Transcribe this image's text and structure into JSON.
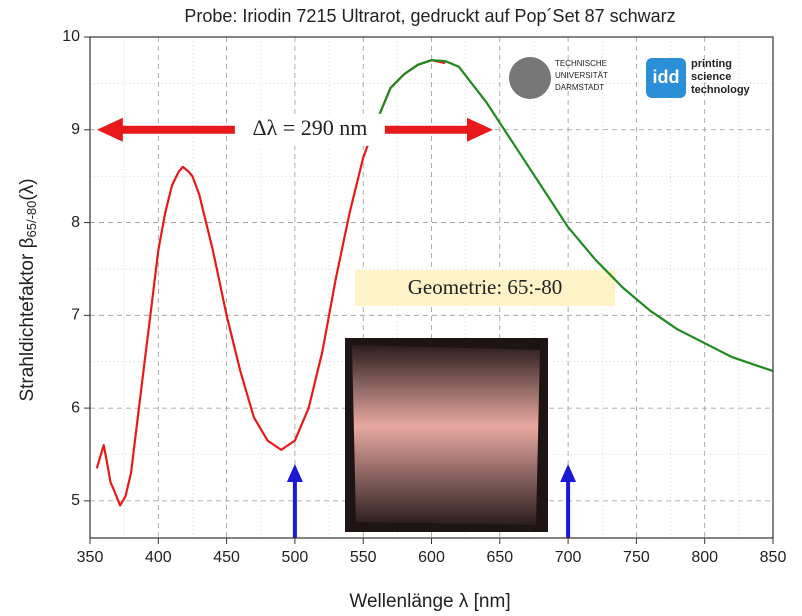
{
  "chart_data": {
    "type": "line",
    "title": "Probe: Iriodin 7215 Ultrarot, gedruckt auf Pop´Set 87 schwarz",
    "x_label": "Wellenlänge λ [nm]",
    "y_label": {
      "text": "Strahldichtefaktor β",
      "subscript": "65/-80",
      "suffix": "(λ)"
    },
    "xlim": [
      350,
      850
    ],
    "xticks": [
      350,
      400,
      450,
      500,
      550,
      600,
      650,
      700,
      750,
      800,
      850
    ],
    "ylim": [
      4.6,
      10
    ],
    "yticks": [
      5,
      6,
      7,
      8,
      9,
      10
    ],
    "grid": true,
    "series": [
      {
        "color": "#e8191a",
        "x": [
          355,
          358,
          360,
          362,
          365,
          368,
          372,
          376,
          380,
          385,
          390,
          395,
          400,
          405,
          410,
          415,
          418,
          422,
          425,
          430,
          435,
          440,
          450,
          460,
          470,
          480,
          490,
          500,
          510,
          520,
          530,
          540,
          550,
          560,
          570,
          580,
          590,
          600,
          610
        ],
        "values": [
          5.35,
          5.5,
          5.6,
          5.45,
          5.2,
          5.1,
          4.95,
          5.05,
          5.3,
          5.9,
          6.5,
          7.1,
          7.7,
          8.1,
          8.4,
          8.55,
          8.6,
          8.55,
          8.5,
          8.3,
          8.0,
          7.7,
          7.0,
          6.4,
          5.9,
          5.65,
          5.55,
          5.65,
          6.0,
          6.6,
          7.4,
          8.1,
          8.7,
          9.1,
          9.45,
          9.6,
          9.7,
          9.75,
          9.72
        ]
      },
      {
        "color": "#1f8a1f",
        "x": [
          560,
          570,
          580,
          590,
          600,
          610,
          620,
          640,
          660,
          680,
          700,
          720,
          740,
          760,
          780,
          800,
          820,
          840,
          850
        ],
        "values": [
          9.1,
          9.45,
          9.6,
          9.7,
          9.75,
          9.74,
          9.68,
          9.3,
          8.85,
          8.4,
          7.95,
          7.6,
          7.3,
          7.05,
          6.85,
          6.7,
          6.55,
          6.45,
          6.4
        ]
      }
    ],
    "annotations": [
      {
        "text": "Δλ = 290 nm",
        "x": [
          355,
          645
        ],
        "y": 9
      },
      {
        "text": "Geometrie: 65:-80"
      }
    ],
    "markers_x": [
      500,
      700
    ],
    "logos": [
      {
        "lines": [
          "TECHNISCHE",
          "UNIVERSITÄT",
          "DARMSTADT"
        ]
      },
      {
        "badge": "idd",
        "lines": [
          "printing",
          "science",
          "technology"
        ]
      }
    ]
  }
}
